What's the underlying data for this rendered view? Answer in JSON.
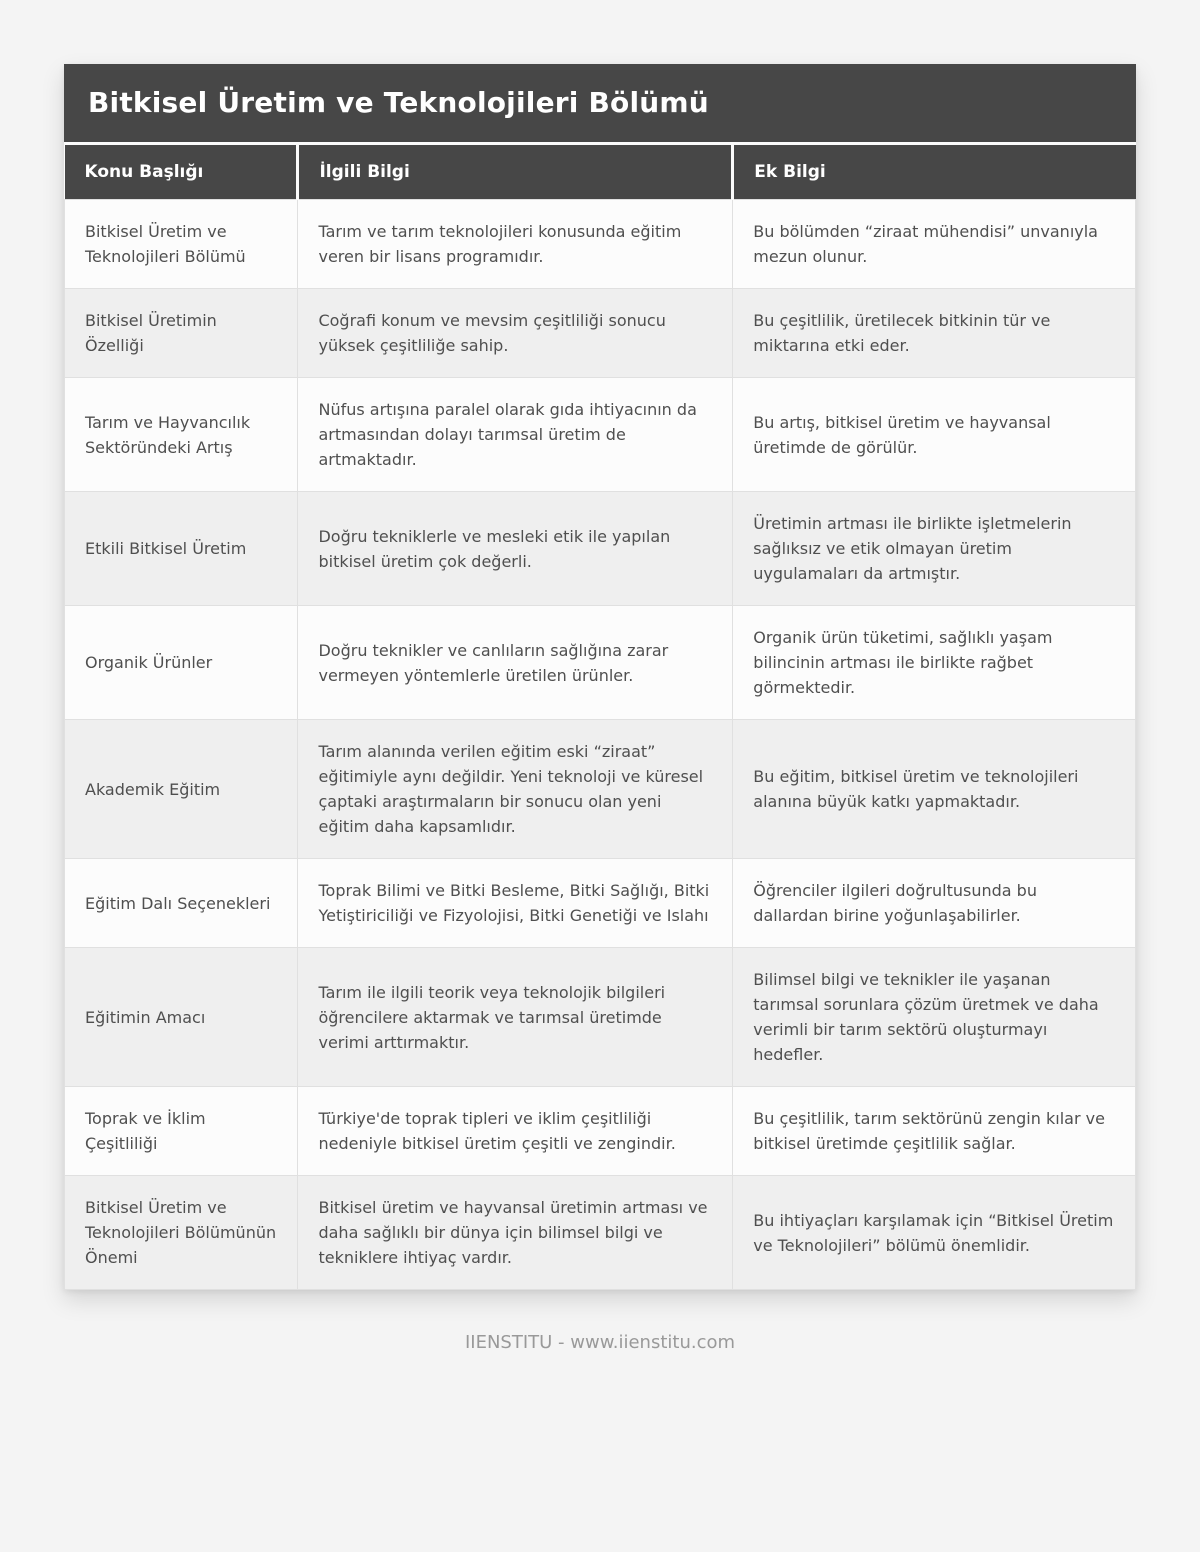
{
  "page": {
    "title": "Bitkisel Üretim ve Teknolojileri Bölümü",
    "footer_text": "IIENSTITU - www.iienstitu.com"
  },
  "table": {
    "columns": [
      "Konu Başlığı",
      "İlgili Bilgi",
      "Ek Bilgi"
    ],
    "rows": [
      {
        "topic": "Bitkisel Üretim ve Teknolojileri Bölümü",
        "info": "Tarım ve tarım teknolojileri konusunda eğitim veren bir lisans programıdır.",
        "extra": "Bu bölümden “ziraat mühendisi” unvanıyla mezun olunur."
      },
      {
        "topic": "Bitkisel Üretimin Özelliği",
        "info": "Coğrafi konum ve mevsim çeşitliliği sonucu yüksek çeşitliliğe sahip.",
        "extra": "Bu çeşitlilik, üretilecek bitkinin tür ve miktarına etki eder."
      },
      {
        "topic": "Tarım ve Hayvancılık Sektöründeki Artış",
        "info": "Nüfus artışına paralel olarak gıda ihtiyacının da artmasından dolayı tarımsal üretim de artmaktadır.",
        "extra": "Bu artış, bitkisel üretim ve hayvansal üretimde de görülür."
      },
      {
        "topic": "Etkili Bitkisel Üretim",
        "info": "Doğru tekniklerle ve mesleki etik ile yapılan bitkisel üretim çok değerli.",
        "extra": "Üretimin artması ile birlikte işletmelerin sağlıksız ve etik olmayan üretim uygulamaları da artmıştır."
      },
      {
        "topic": "Organik Ürünler",
        "info": "Doğru teknikler ve canlıların sağlığına zarar vermeyen yöntemlerle üretilen ürünler.",
        "extra": "Organik ürün tüketimi, sağlıklı yaşam bilincinin artması ile birlikte rağbet görmektedir."
      },
      {
        "topic": "Akademik Eğitim",
        "info": "Tarım alanında verilen eğitim eski “ziraat” eğitimiyle aynı değildir. Yeni teknoloji ve küresel çaptaki araştırmaların bir sonucu olan yeni eğitim daha kapsamlıdır.",
        "extra": "Bu eğitim, bitkisel üretim ve teknolojileri alanına büyük katkı yapmaktadır."
      },
      {
        "topic": "Eğitim Dalı Seçenekleri",
        "info": "Toprak Bilimi ve Bitki Besleme, Bitki Sağlığı, Bitki Yetiştiriciliği ve Fizyolojisi, Bitki Genetiği ve Islahı",
        "extra": "Öğrenciler ilgileri doğrultusunda bu dallardan birine yoğunlaşabilirler."
      },
      {
        "topic": "Eğitimin Amacı",
        "info": "Tarım ile ilgili teorik veya teknolojik bilgileri öğrencilere aktarmak ve tarımsal üretimde verimi arttırmaktır.",
        "extra": "Bilimsel bilgi ve teknikler ile yaşanan tarımsal sorunlara çözüm üretmek ve daha verimli bir tarım sektörü oluşturmayı hedefler."
      },
      {
        "topic": "Toprak ve İklim Çeşitliliği",
        "info": "Türkiye'de toprak tipleri ve iklim çeşitliliği nedeniyle bitkisel üretim çeşitli ve zengindir.",
        "extra": "Bu çeşitlilik, tarım sektörünü zengin kılar ve bitkisel üretimde çeşitlilik sağlar."
      },
      {
        "topic": "Bitkisel Üretim ve Teknolojileri Bölümünün Önemi",
        "info": "Bitkisel üretim ve hayvansal üretimin artması ve daha sağlıklı bir dünya için bilimsel bilgi ve tekniklere ihtiyaç vardır.",
        "extra": "Bu ihtiyaçları karşılamak için “Bitkisel Üretim ve Teknolojileri” bölümü önemlidir."
      }
    ]
  },
  "colors": {
    "header_bg": "#474747",
    "header_text": "#ffffff",
    "row_bg": "#fcfcfc",
    "row_alt_bg": "#efefef",
    "body_text": "#4f4f4f",
    "cell_border": "#e0e0e0",
    "page_bg": "#f4f4f4",
    "footer_text": "#999999"
  }
}
